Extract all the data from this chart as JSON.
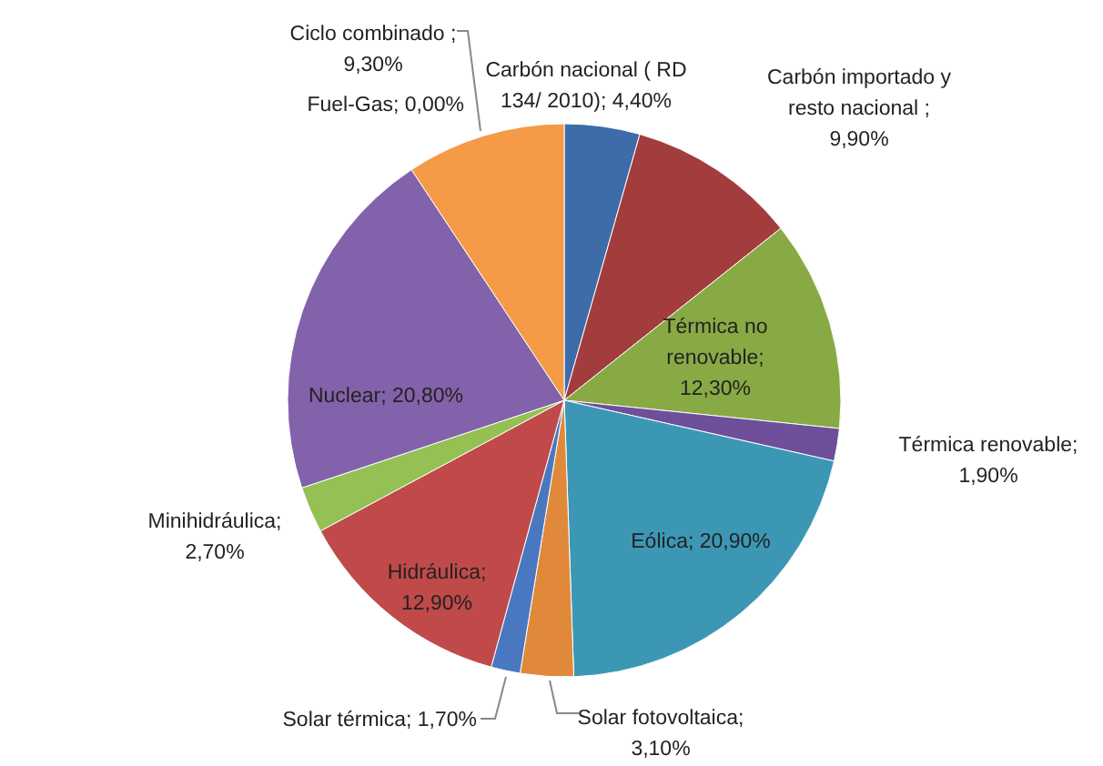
{
  "chart_data": {
    "type": "pie",
    "categories": [
      "Carbón nacional ( RD 134/ 2010); 4,40%",
      "Carbón importado y resto nacional ; 9,90%",
      "Térmica no renovable; 12,30%",
      "Térmica renovable; 1,90%",
      "Eólica; 20,90%",
      "Solar fotovoltaica; 3,10%",
      "Solar térmica; 1,70%",
      "Hidráulica; 12,90%",
      "Minihidráulica; 2,70%",
      "Nuclear; 20,80%",
      "Fuel-Gas; 0,00%",
      "Ciclo combinado ; 9,30%"
    ],
    "values": [
      4.4,
      9.9,
      12.3,
      1.9,
      20.9,
      3.1,
      1.7,
      12.9,
      2.7,
      20.8,
      0,
      9.3
    ],
    "colors": [
      "#3d6ca8",
      "#a33c3c",
      "#88aa44",
      "#6e4f9a",
      "#3c97b5",
      "#e0893a",
      "#4a78c0",
      "#c04a4a",
      "#94c054",
      "#8262aa",
      "#4a78c0",
      "#f59a46"
    ]
  }
}
